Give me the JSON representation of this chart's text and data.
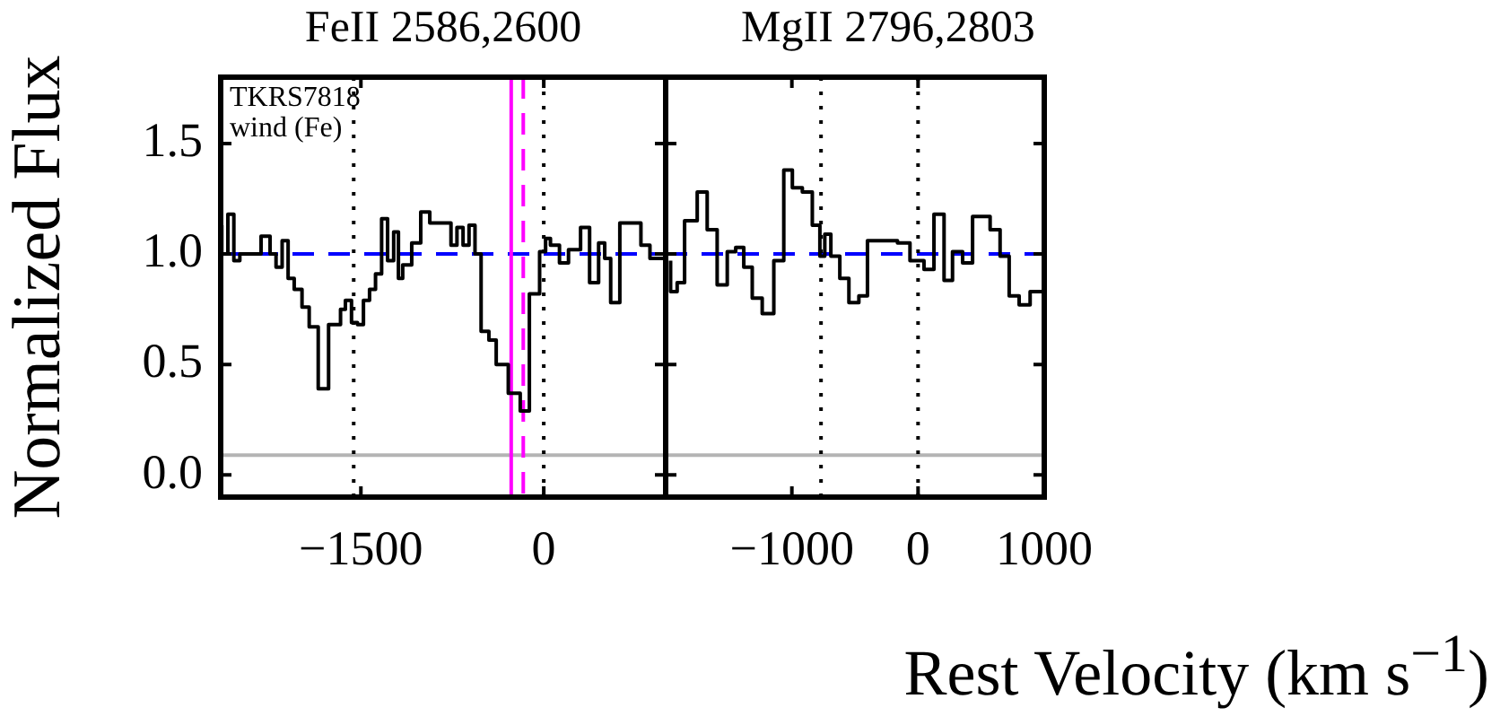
{
  "chart_data": [
    {
      "type": "step",
      "title": "FeII 2586,2600",
      "ylabel": "Normalized Flux",
      "annotations": [
        "TKRS7818",
        "wind (Fe)"
      ],
      "x": [
        -2641,
        -2591,
        -2542,
        -2493,
        -2319,
        -2245,
        -2196,
        -2146,
        -2097,
        -2047,
        -1983,
        -1924,
        -1850,
        -1765,
        -1667,
        -1627,
        -1577,
        -1528,
        -1479,
        -1429,
        -1380,
        -1330,
        -1281,
        -1231,
        -1192,
        -1157,
        -1083,
        -1009,
        -935,
        -761,
        -712,
        -662,
        -613,
        -564,
        -514,
        -450,
        -390,
        -291,
        -193,
        -118,
        -34,
        15,
        55,
        129,
        203,
        302,
        376,
        450,
        500,
        549,
        624,
        797,
        871,
        945,
        1000
      ],
      "series": [
        {
          "color": "#000000",
          "values": [
            1.13,
            1.0,
            1.18,
            0.97,
            1.0,
            1.08,
            1.0,
            0.94,
            1.06,
            0.89,
            0.84,
            0.76,
            0.67,
            0.39,
            0.68,
            0.75,
            0.79,
            0.69,
            0.68,
            0.79,
            0.84,
            0.91,
            1.16,
            0.97,
            1.1,
            0.89,
            0.95,
            1.05,
            1.19,
            1.14,
            1.04,
            1.12,
            1.04,
            1.13,
            1.0,
            0.65,
            0.61,
            0.5,
            0.37,
            0.29,
            0.82,
            1.01,
            1.07,
            1.04,
            0.96,
            1.02,
            1.12,
            0.87,
            1.05,
            0.98,
            0.78,
            1.14,
            1.04,
            0.98,
            0.98
          ]
        }
      ],
      "xlim": [
        -2650,
        1000
      ],
      "xticks": [
        -1500,
        0
      ],
      "ylim": [
        -0.1,
        1.8
      ],
      "yticks": [
        {
          "value": 0,
          "label": "0.0"
        },
        0.5,
        {
          "value": 1,
          "label": "1.0"
        },
        1.5
      ],
      "ref_lines": [
        {
          "axis": "y",
          "value": 1.0,
          "color": "#0000ff",
          "line_style": "dashed"
        },
        {
          "axis": "y",
          "value": 0.09,
          "color": "#b4b4b4",
          "line_style": "solid"
        },
        {
          "axis": "x",
          "value": -1559,
          "color": "#000000",
          "line_style": "dotted"
        },
        {
          "axis": "x",
          "value": 0,
          "color": "#000000",
          "line_style": "dotted"
        },
        {
          "axis": "x",
          "value": -267,
          "color": "#ff00ff",
          "line_style": "solid"
        },
        {
          "axis": "x",
          "value": -168,
          "color": "#ff00ff",
          "line_style": "dashed"
        }
      ],
      "grid": false,
      "legend": false
    },
    {
      "type": "step",
      "title": "MgII 2796,2803",
      "xlabel": "Rest Velocity (km s$^{−1}$)",
      "x": [
        -1961,
        -1909,
        -1850,
        -1750,
        -1671,
        -1592,
        -1512,
        -1445,
        -1381,
        -1314,
        -1235,
        -1143,
        -1064,
        -996,
        -917,
        -838,
        -778,
        -739,
        -691,
        -620,
        -548,
        -469,
        -401,
        -163,
        -64,
        47,
        126,
        206,
        273,
        353,
        432,
        571,
        650,
        722,
        801,
        888,
        948,
        1000
      ],
      "series": [
        {
          "color": "#000000",
          "values": [
            0.97,
            0.83,
            0.87,
            1.15,
            1.28,
            1.11,
            0.86,
            1.01,
            1.03,
            0.94,
            0.8,
            0.73,
            0.97,
            1.38,
            1.3,
            1.28,
            1.13,
            0.99,
            1.09,
            0.99,
            0.89,
            0.78,
            0.81,
            1.06,
            1.05,
            0.97,
            0.93,
            1.18,
            0.88,
            1.01,
            0.96,
            1.17,
            1.11,
            0.99,
            0.81,
            0.77,
            0.83,
            0.83
          ]
        }
      ],
      "xlim": [
        -2000,
        1000
      ],
      "xticks": [
        -1000,
        0,
        1000
      ],
      "ylim": [
        -0.1,
        1.8
      ],
      "tick_labels": "x",
      "ref_lines": [
        {
          "axis": "y",
          "value": 1.0,
          "color": "#0000ff",
          "line_style": "dashed"
        },
        {
          "axis": "y",
          "value": 0.09,
          "color": "#b4b4b4",
          "line_style": "solid"
        },
        {
          "axis": "x",
          "value": -769,
          "color": "#000000",
          "line_style": "dotted"
        },
        {
          "axis": "x",
          "value": 0,
          "color": "#000000",
          "line_style": "dotted"
        }
      ],
      "grid": false,
      "legend": false
    }
  ]
}
